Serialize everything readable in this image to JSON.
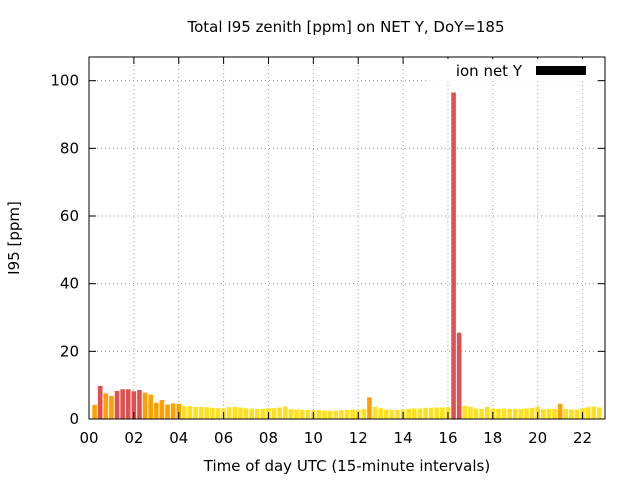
{
  "chart_data": {
    "type": "bar",
    "title": "Total I95 zenith [ppm] on NET Y, DoY=185",
    "xlabel": "Time of day UTC (15-minute intervals)",
    "ylabel": "I95 [ppm]",
    "xlim": [
      0,
      23
    ],
    "ylim": [
      0,
      107
    ],
    "xticks": [
      0,
      2,
      4,
      6,
      8,
      10,
      12,
      14,
      16,
      18,
      20,
      22
    ],
    "xtick_labels": [
      "00",
      "02",
      "04",
      "06",
      "08",
      "10",
      "12",
      "14",
      "16",
      "18",
      "20",
      "22"
    ],
    "yticks": [
      0,
      20,
      40,
      60,
      80,
      100
    ],
    "grid": true,
    "legend": {
      "label": "ion net Y",
      "position": "top-right",
      "color": "#000000"
    },
    "colors": {
      "high": "#e05050",
      "mid": "#ffa000",
      "low": "#ffe020"
    },
    "series": [
      {
        "interval_hours": 0.25,
        "x": [
          0.25,
          0.5,
          0.75,
          1.0,
          1.25,
          1.5,
          1.75,
          2.0,
          2.25,
          2.5,
          2.75,
          3.0,
          3.25,
          3.5,
          3.75,
          4.0,
          4.25,
          4.5,
          4.75,
          5.0,
          5.25,
          5.5,
          5.75,
          6.0,
          6.25,
          6.5,
          6.75,
          7.0,
          7.25,
          7.5,
          7.75,
          8.0,
          8.25,
          8.5,
          8.75,
          9.0,
          9.25,
          9.5,
          9.75,
          10.0,
          10.25,
          10.5,
          10.75,
          11.0,
          11.25,
          11.5,
          11.75,
          12.0,
          12.25,
          12.5,
          12.75,
          13.0,
          13.25,
          13.5,
          13.75,
          14.0,
          14.25,
          14.5,
          14.75,
          15.0,
          15.25,
          15.5,
          15.75,
          16.0,
          16.25,
          16.5,
          16.75,
          17.0,
          17.25,
          17.5,
          17.75,
          18.0,
          18.25,
          18.5,
          18.75,
          19.0,
          19.25,
          19.5,
          19.75,
          20.0,
          20.25,
          20.5,
          20.75,
          21.0,
          21.25,
          21.5,
          21.75,
          22.0,
          22.25,
          22.5,
          22.75
        ],
        "values": [
          4.2,
          9.8,
          7.6,
          6.8,
          8.3,
          8.8,
          8.8,
          8.2,
          8.6,
          7.8,
          7.2,
          4.8,
          5.6,
          4.3,
          4.6,
          4.5,
          3.8,
          3.8,
          3.6,
          3.6,
          3.5,
          3.3,
          3.2,
          3.2,
          3.5,
          3.6,
          3.4,
          3.2,
          3.0,
          3.0,
          3.0,
          3.2,
          3.2,
          3.4,
          3.7,
          2.9,
          2.8,
          2.7,
          2.7,
          2.6,
          2.7,
          2.5,
          2.4,
          2.5,
          2.6,
          2.7,
          2.8,
          2.6,
          3.0,
          6.4,
          3.6,
          3.2,
          2.8,
          2.7,
          2.7,
          2.8,
          3.0,
          3.1,
          3.1,
          3.3,
          3.3,
          3.4,
          3.4,
          3.5,
          96.5,
          25.5,
          3.9,
          3.6,
          3.1,
          3.0,
          3.6,
          3.1,
          3.0,
          3.1,
          3.0,
          3.0,
          3.0,
          3.1,
          3.3,
          3.6,
          2.9,
          3.0,
          3.0,
          4.5,
          3.0,
          2.8,
          2.8,
          3.2,
          3.5,
          3.7,
          3.4
        ]
      }
    ]
  }
}
